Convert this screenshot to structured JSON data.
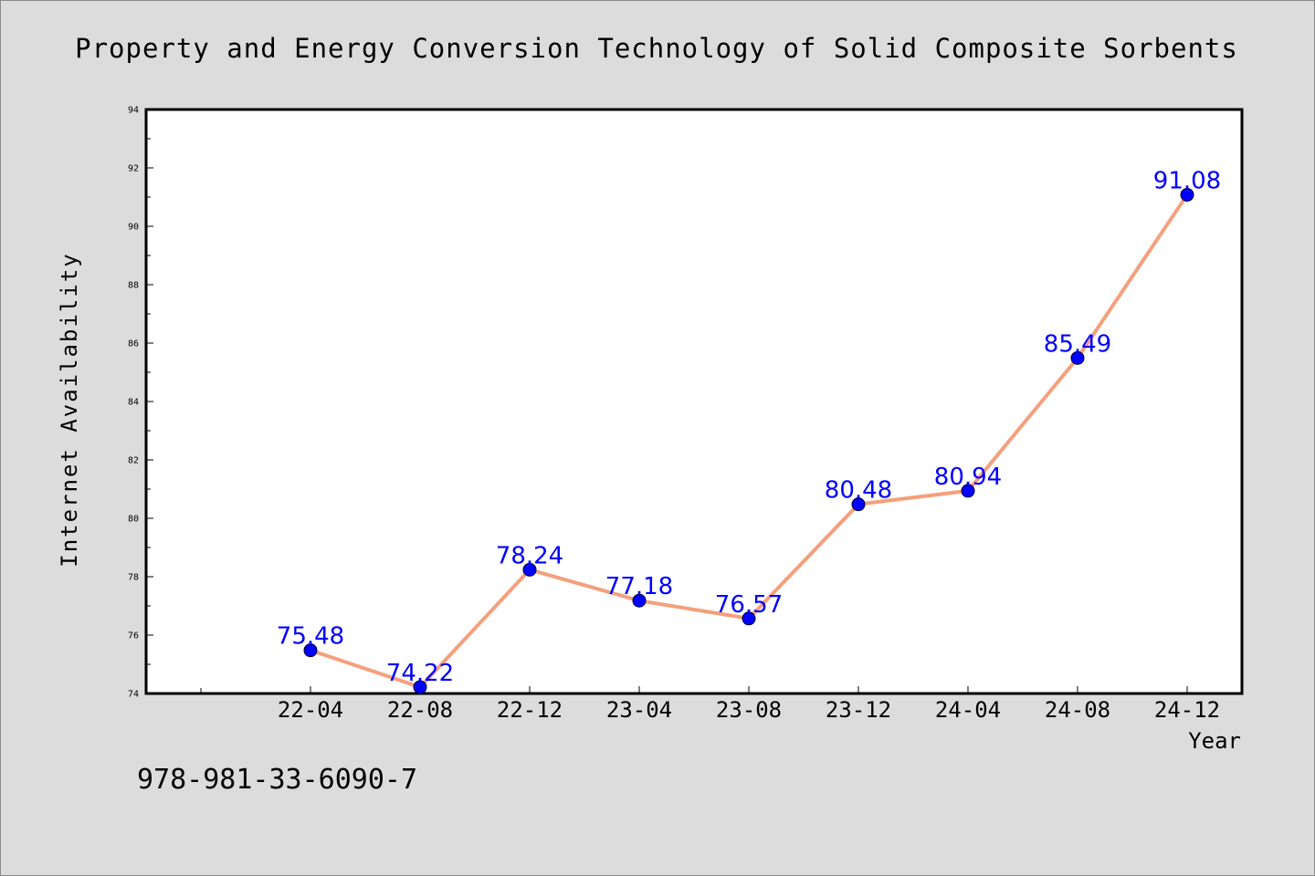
{
  "chart_data": {
    "type": "line",
    "title": "Property and Energy Conversion Technology of Solid Composite Sorbents",
    "xlabel": "Year",
    "ylabel": "Internet Availability",
    "categories": [
      "22-04",
      "22-08",
      "22-12",
      "23-04",
      "23-08",
      "23-12",
      "24-04",
      "24-08",
      "24-12"
    ],
    "series": [
      {
        "values": [
          75.48,
          74.22,
          78.24,
          77.18,
          76.57,
          80.48,
          80.94,
          85.49,
          91.08
        ]
      }
    ],
    "ylim": [
      74,
      94
    ],
    "yticks": [
      "74",
      "76",
      "78",
      "80",
      "82",
      "84",
      "86",
      "88",
      "90",
      "92",
      "94"
    ],
    "grid": false,
    "legend": "none",
    "data_labels": true
  },
  "footnote": "978-981-33-6090-7",
  "colors": {
    "background": "#dcdcdc",
    "plot_background": "#ffffff",
    "line": "#f4a07c",
    "marker": "#0000ff",
    "data_label": "#0000ff",
    "text": "#000000"
  }
}
